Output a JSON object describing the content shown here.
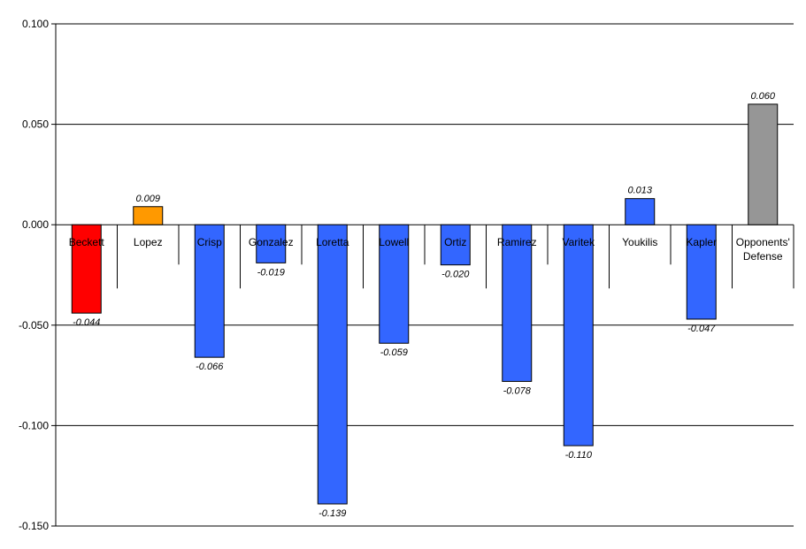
{
  "chart_data": {
    "type": "bar",
    "categories": [
      "Beckett",
      "Lopez",
      "Crisp",
      "Gonzalez",
      "Loretta",
      "Lowell",
      "Ortiz",
      "Ramirez",
      "Varitek",
      "Youkilis",
      "Kapler",
      "Opponents' Defense"
    ],
    "values": [
      -0.044,
      0.009,
      -0.066,
      -0.019,
      -0.139,
      -0.059,
      -0.02,
      -0.078,
      -0.11,
      0.013,
      -0.047,
      0.06
    ],
    "data_labels": [
      "-0.044",
      "0.009",
      "-0.066",
      "-0.019",
      "-0.139",
      "-0.059",
      "-0.020",
      "-0.078",
      "-0.110",
      "0.013",
      "-0.047",
      "0.060"
    ],
    "colors": [
      "#ff0000",
      "#ff9900",
      "#3366ff",
      "#3366ff",
      "#3366ff",
      "#3366ff",
      "#3366ff",
      "#3366ff",
      "#3366ff",
      "#3366ff",
      "#3366ff",
      "#969696"
    ],
    "yticks": [
      0.1,
      0.05,
      0.0,
      -0.05,
      -0.1,
      -0.15
    ],
    "ytick_labels": [
      "0.100",
      "0.050",
      "0.000",
      "-0.050",
      "-0.100",
      "-0.150"
    ],
    "ylim": [
      -0.15,
      0.1
    ],
    "grid": true,
    "title": "",
    "xlabel": "",
    "ylabel": ""
  }
}
